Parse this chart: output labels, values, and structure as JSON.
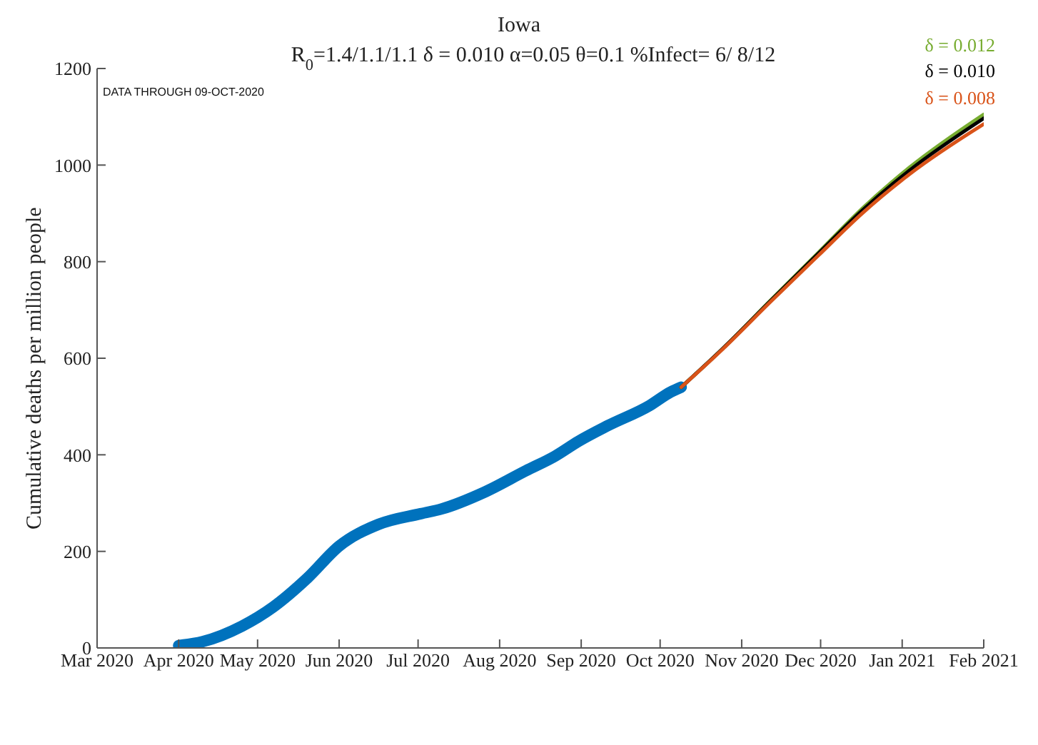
{
  "chart_data": {
    "type": "line",
    "title": "Iowa",
    "subtitle": "R$_{0}$=1.4/1.1/1.1  δ = 0.010  α=0.05  θ=0.1  %Infect= 6/ 8/12",
    "ylabel": "Cumulative deaths per million people",
    "annotations": [
      "DATA THROUGH 09-OCT-2020"
    ],
    "series": [
      {
        "color": "#0072bd",
        "x": [
          "2020-04-01",
          "2020-04-10",
          "2020-04-25",
          "2020-05-07",
          "2020-05-20",
          "2020-06-01",
          "2020-06-16",
          "2020-07-02",
          "2020-07-10",
          "2020-07-26",
          "2020-08-11",
          "2020-08-22",
          "2020-08-31",
          "2020-09-11",
          "2020-09-27",
          "2020-10-05",
          "2020-10-09"
        ],
        "values": [
          5,
          13,
          45,
          85,
          145,
          211,
          256,
          278,
          288,
          322,
          367,
          397,
          428,
          460,
          502,
          530,
          540
        ]
      },
      {
        "name": "δ = 0.012",
        "color": "#77ac30",
        "x": [
          "2020-10-09",
          "2020-10-25",
          "2020-11-12",
          "2020-11-30",
          "2020-12-17",
          "2021-01-04",
          "2021-02-01"
        ],
        "values": [
          540,
          621,
          720,
          818,
          911,
          996,
          1105
        ]
      },
      {
        "name": "δ = 0.010",
        "color": "#000000",
        "x": [
          "2020-10-09",
          "2020-10-25",
          "2020-11-12",
          "2020-11-30",
          "2020-12-17",
          "2021-01-04",
          "2021-02-01"
        ],
        "values": [
          540,
          621,
          719,
          816,
          907,
          990,
          1097
        ]
      },
      {
        "name": "δ = 0.008",
        "color": "#d95319",
        "x": [
          "2020-10-09",
          "2020-10-25",
          "2020-11-12",
          "2020-11-30",
          "2020-12-17",
          "2021-01-04",
          "2021-02-01"
        ],
        "values": [
          540,
          620,
          717,
          812,
          901,
          982,
          1085
        ]
      }
    ],
    "xlim": [
      "2020-03-01",
      "2021-02-01"
    ],
    "xticks": [
      {
        "value": "2020-03-01",
        "label": "Mar 2020"
      },
      {
        "value": "2020-04-01",
        "label": "Apr 2020"
      },
      {
        "value": "2020-05-01",
        "label": "May 2020"
      },
      {
        "value": "2020-06-01",
        "label": "Jun 2020"
      },
      {
        "value": "2020-07-01",
        "label": "Jul 2020"
      },
      {
        "value": "2020-08-01",
        "label": "Aug 2020"
      },
      {
        "value": "2020-09-01",
        "label": "Sep 2020"
      },
      {
        "value": "2020-10-01",
        "label": "Oct 2020"
      },
      {
        "value": "2020-11-01",
        "label": "Nov 2020"
      },
      {
        "value": "2020-12-01",
        "label": "Dec 2020"
      },
      {
        "value": "2021-01-01",
        "label": "Jan 2021"
      },
      {
        "value": "2021-02-01",
        "label": "Feb 2021"
      }
    ],
    "ylim": [
      0,
      1200
    ],
    "yticks": [
      0,
      200,
      400,
      600,
      800,
      1000,
      1200
    ],
    "grid": false,
    "legend": false,
    "marker": "none",
    "line_style": "solid"
  }
}
